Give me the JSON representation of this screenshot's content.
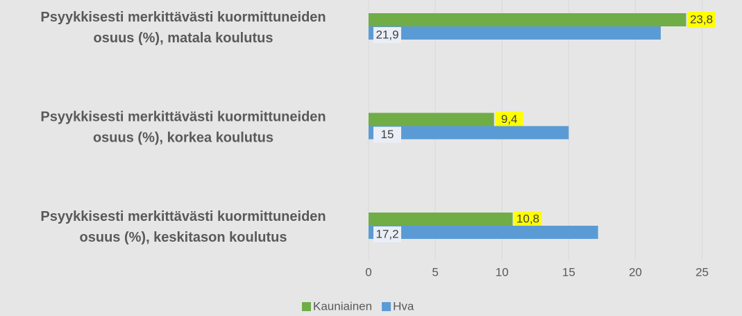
{
  "chart_data": {
    "type": "bar",
    "orientation": "horizontal",
    "categories": [
      "Psyykkisesti merkittävästi kuormittuneiden osuus (%), matala koulutus",
      "Psyykkisesti merkittävästi kuormittuneiden osuus (%), korkea koulutus",
      "Psyykkisesti merkittävästi kuormittuneiden osuus (%), keskitason koulutus"
    ],
    "series": [
      {
        "name": "Kauniainen",
        "color": "#70ad47",
        "values": [
          23.8,
          9.4,
          10.8
        ],
        "value_labels": [
          "23,8",
          "9,4",
          "10,8"
        ],
        "label_background": "#ffff00"
      },
      {
        "name": "Hva",
        "color": "#5b9bd5",
        "values": [
          21.9,
          15,
          17.2
        ],
        "value_labels": [
          "21,9",
          "15",
          "17,2"
        ],
        "label_background": "#eaeff7"
      }
    ],
    "xlim": [
      0,
      27
    ],
    "xticks": [
      0,
      5,
      10,
      15,
      20,
      25
    ],
    "grid": true,
    "legend": "bottom"
  }
}
